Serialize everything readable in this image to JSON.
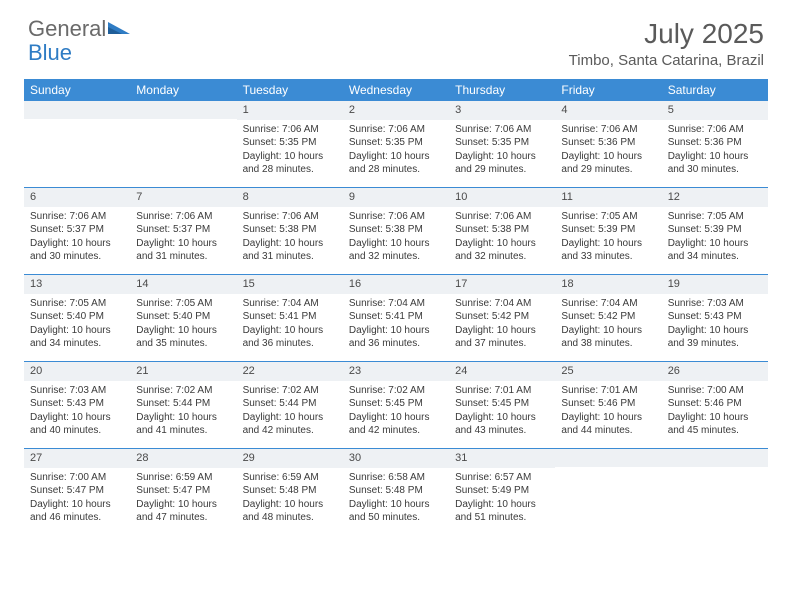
{
  "brand": {
    "part1": "General",
    "part2": "Blue"
  },
  "title": "July 2025",
  "location": "Timbo, Santa Catarina, Brazil",
  "colors": {
    "header_bar": "#3b8bd4",
    "daynum_bg": "#eef1f4",
    "text": "#3a3a3a",
    "title_text": "#5a5a5a",
    "logo_gray": "#6a6a6a",
    "logo_blue": "#2f7cc4",
    "border": "#3b8bd4"
  },
  "day_headers": [
    "Sunday",
    "Monday",
    "Tuesday",
    "Wednesday",
    "Thursday",
    "Friday",
    "Saturday"
  ],
  "weeks": [
    [
      {
        "n": "",
        "lines": []
      },
      {
        "n": "",
        "lines": []
      },
      {
        "n": "1",
        "lines": [
          "Sunrise: 7:06 AM",
          "Sunset: 5:35 PM",
          "Daylight: 10 hours and 28 minutes."
        ]
      },
      {
        "n": "2",
        "lines": [
          "Sunrise: 7:06 AM",
          "Sunset: 5:35 PM",
          "Daylight: 10 hours and 28 minutes."
        ]
      },
      {
        "n": "3",
        "lines": [
          "Sunrise: 7:06 AM",
          "Sunset: 5:35 PM",
          "Daylight: 10 hours and 29 minutes."
        ]
      },
      {
        "n": "4",
        "lines": [
          "Sunrise: 7:06 AM",
          "Sunset: 5:36 PM",
          "Daylight: 10 hours and 29 minutes."
        ]
      },
      {
        "n": "5",
        "lines": [
          "Sunrise: 7:06 AM",
          "Sunset: 5:36 PM",
          "Daylight: 10 hours and 30 minutes."
        ]
      }
    ],
    [
      {
        "n": "6",
        "lines": [
          "Sunrise: 7:06 AM",
          "Sunset: 5:37 PM",
          "Daylight: 10 hours and 30 minutes."
        ]
      },
      {
        "n": "7",
        "lines": [
          "Sunrise: 7:06 AM",
          "Sunset: 5:37 PM",
          "Daylight: 10 hours and 31 minutes."
        ]
      },
      {
        "n": "8",
        "lines": [
          "Sunrise: 7:06 AM",
          "Sunset: 5:38 PM",
          "Daylight: 10 hours and 31 minutes."
        ]
      },
      {
        "n": "9",
        "lines": [
          "Sunrise: 7:06 AM",
          "Sunset: 5:38 PM",
          "Daylight: 10 hours and 32 minutes."
        ]
      },
      {
        "n": "10",
        "lines": [
          "Sunrise: 7:06 AM",
          "Sunset: 5:38 PM",
          "Daylight: 10 hours and 32 minutes."
        ]
      },
      {
        "n": "11",
        "lines": [
          "Sunrise: 7:05 AM",
          "Sunset: 5:39 PM",
          "Daylight: 10 hours and 33 minutes."
        ]
      },
      {
        "n": "12",
        "lines": [
          "Sunrise: 7:05 AM",
          "Sunset: 5:39 PM",
          "Daylight: 10 hours and 34 minutes."
        ]
      }
    ],
    [
      {
        "n": "13",
        "lines": [
          "Sunrise: 7:05 AM",
          "Sunset: 5:40 PM",
          "Daylight: 10 hours and 34 minutes."
        ]
      },
      {
        "n": "14",
        "lines": [
          "Sunrise: 7:05 AM",
          "Sunset: 5:40 PM",
          "Daylight: 10 hours and 35 minutes."
        ]
      },
      {
        "n": "15",
        "lines": [
          "Sunrise: 7:04 AM",
          "Sunset: 5:41 PM",
          "Daylight: 10 hours and 36 minutes."
        ]
      },
      {
        "n": "16",
        "lines": [
          "Sunrise: 7:04 AM",
          "Sunset: 5:41 PM",
          "Daylight: 10 hours and 36 minutes."
        ]
      },
      {
        "n": "17",
        "lines": [
          "Sunrise: 7:04 AM",
          "Sunset: 5:42 PM",
          "Daylight: 10 hours and 37 minutes."
        ]
      },
      {
        "n": "18",
        "lines": [
          "Sunrise: 7:04 AM",
          "Sunset: 5:42 PM",
          "Daylight: 10 hours and 38 minutes."
        ]
      },
      {
        "n": "19",
        "lines": [
          "Sunrise: 7:03 AM",
          "Sunset: 5:43 PM",
          "Daylight: 10 hours and 39 minutes."
        ]
      }
    ],
    [
      {
        "n": "20",
        "lines": [
          "Sunrise: 7:03 AM",
          "Sunset: 5:43 PM",
          "Daylight: 10 hours and 40 minutes."
        ]
      },
      {
        "n": "21",
        "lines": [
          "Sunrise: 7:02 AM",
          "Sunset: 5:44 PM",
          "Daylight: 10 hours and 41 minutes."
        ]
      },
      {
        "n": "22",
        "lines": [
          "Sunrise: 7:02 AM",
          "Sunset: 5:44 PM",
          "Daylight: 10 hours and 42 minutes."
        ]
      },
      {
        "n": "23",
        "lines": [
          "Sunrise: 7:02 AM",
          "Sunset: 5:45 PM",
          "Daylight: 10 hours and 42 minutes."
        ]
      },
      {
        "n": "24",
        "lines": [
          "Sunrise: 7:01 AM",
          "Sunset: 5:45 PM",
          "Daylight: 10 hours and 43 minutes."
        ]
      },
      {
        "n": "25",
        "lines": [
          "Sunrise: 7:01 AM",
          "Sunset: 5:46 PM",
          "Daylight: 10 hours and 44 minutes."
        ]
      },
      {
        "n": "26",
        "lines": [
          "Sunrise: 7:00 AM",
          "Sunset: 5:46 PM",
          "Daylight: 10 hours and 45 minutes."
        ]
      }
    ],
    [
      {
        "n": "27",
        "lines": [
          "Sunrise: 7:00 AM",
          "Sunset: 5:47 PM",
          "Daylight: 10 hours and 46 minutes."
        ]
      },
      {
        "n": "28",
        "lines": [
          "Sunrise: 6:59 AM",
          "Sunset: 5:47 PM",
          "Daylight: 10 hours and 47 minutes."
        ]
      },
      {
        "n": "29",
        "lines": [
          "Sunrise: 6:59 AM",
          "Sunset: 5:48 PM",
          "Daylight: 10 hours and 48 minutes."
        ]
      },
      {
        "n": "30",
        "lines": [
          "Sunrise: 6:58 AM",
          "Sunset: 5:48 PM",
          "Daylight: 10 hours and 50 minutes."
        ]
      },
      {
        "n": "31",
        "lines": [
          "Sunrise: 6:57 AM",
          "Sunset: 5:49 PM",
          "Daylight: 10 hours and 51 minutes."
        ]
      },
      {
        "n": "",
        "lines": []
      },
      {
        "n": "",
        "lines": []
      }
    ]
  ]
}
